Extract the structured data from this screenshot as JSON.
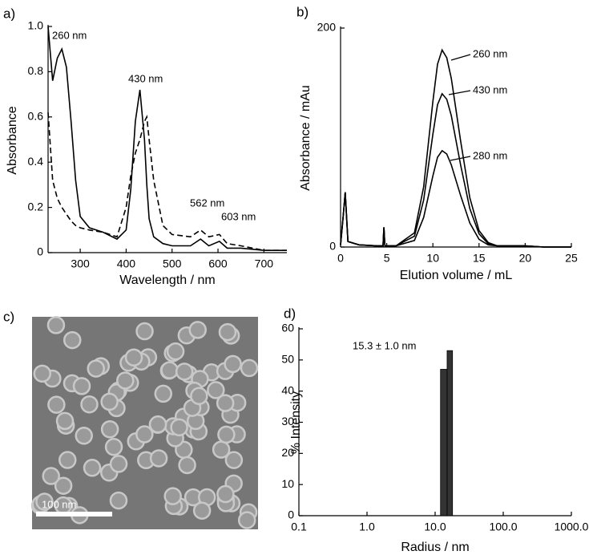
{
  "chart_data": [
    {
      "type": "line",
      "panel": "a)",
      "y_label": "Absorbance",
      "x_label": "Wavelength / nm",
      "x": [
        230,
        240,
        250,
        260,
        270,
        280,
        290,
        300,
        320,
        350,
        380,
        400,
        410,
        420,
        430,
        440,
        445,
        450,
        460,
        480,
        500,
        540,
        562,
        580,
        603,
        620,
        650,
        700,
        750
      ],
      "series": [
        {
          "color": "#000000",
          "line_style": "solid",
          "values": [
            1.0,
            0.76,
            0.86,
            0.9,
            0.82,
            0.58,
            0.32,
            0.16,
            0.11,
            0.09,
            0.06,
            0.1,
            0.28,
            0.58,
            0.72,
            0.5,
            0.3,
            0.15,
            0.07,
            0.04,
            0.03,
            0.03,
            0.06,
            0.03,
            0.05,
            0.02,
            0.02,
            0.01,
            0.01
          ]
        },
        {
          "color": "#000000",
          "line_style": "dashed",
          "values": [
            0.62,
            0.32,
            0.24,
            0.2,
            0.17,
            0.14,
            0.12,
            0.11,
            0.1,
            0.09,
            0.07,
            0.2,
            0.34,
            0.44,
            0.5,
            0.58,
            0.6,
            0.5,
            0.32,
            0.12,
            0.08,
            0.07,
            0.1,
            0.07,
            0.08,
            0.04,
            0.03,
            0.01,
            0.01
          ]
        }
      ],
      "annotations": [
        "260 nm",
        "430 nm",
        "562 nm",
        "603 nm"
      ],
      "xlim": [
        230,
        750
      ],
      "xticks": [
        300,
        400,
        500,
        600,
        700
      ],
      "ylim": [
        0,
        1
      ],
      "yticks": [
        0,
        0.2,
        0.4,
        0.6,
        0.8,
        {
          "value": 1,
          "label": "1.0"
        }
      ]
    },
    {
      "type": "line",
      "panel": "b)",
      "y_label": "Absorbance / mAu",
      "x_label": "Elution volume / mL",
      "x": [
        0,
        0.3,
        0.5,
        0.8,
        2,
        4,
        4.6,
        4.7,
        4.8,
        6,
        8,
        9,
        10,
        10.5,
        11,
        11.5,
        12,
        13,
        14,
        15,
        16,
        17,
        18,
        20,
        22,
        25
      ],
      "series": [
        {
          "color": "#000000",
          "line_style": "solid",
          "values": [
            2,
            30,
            50,
            5,
            2,
            1,
            1,
            18,
            1,
            1,
            13,
            55,
            133,
            167,
            180,
            173,
            154,
            97,
            45,
            15,
            4,
            1,
            1,
            1,
            0,
            0
          ]
        },
        {
          "color": "#000000",
          "line_style": "solid",
          "values": [
            2,
            30,
            50,
            5,
            2,
            1,
            1,
            18,
            1,
            1,
            10,
            43,
            103,
            130,
            140,
            135,
            120,
            75,
            35,
            12,
            3,
            1,
            1,
            1,
            0,
            0
          ]
        },
        {
          "color": "#000000",
          "line_style": "solid",
          "values": [
            2,
            30,
            50,
            5,
            2,
            1,
            1,
            18,
            1,
            1,
            6,
            27,
            65,
            82,
            88,
            85,
            75,
            47,
            22,
            7,
            2,
            1,
            1,
            1,
            0,
            0
          ]
        }
      ],
      "annotations": [
        "260 nm",
        "430 nm",
        "280 nm"
      ],
      "xlim": [
        0,
        25
      ],
      "xticks": [
        0,
        5,
        10,
        15,
        20,
        25
      ],
      "ylim": [
        0,
        200
      ],
      "yticks": [
        0,
        200
      ]
    },
    {
      "type": "histogram",
      "panel": "d)",
      "y_label": "% Intensity",
      "x_label": "Radius / nm",
      "bins": [
        12,
        15,
        18
      ],
      "values": [
        47,
        53
      ],
      "color": "#333333",
      "annotations": [
        "15.3 ± 1.0 nm"
      ],
      "xscale": "log",
      "xlim": [
        0.1,
        1000
      ],
      "xticks": [
        0.1,
        {
          "value": 1,
          "label": "1.0"
        },
        {
          "value": 10,
          "label": "10.0"
        },
        {
          "value": 100,
          "label": "100.0"
        },
        {
          "value": 1000,
          "label": "1000.0"
        }
      ],
      "ylim": [
        0,
        60
      ],
      "yticks": [
        0,
        10,
        20,
        30,
        40,
        50,
        60
      ]
    }
  ],
  "micrograph": {
    "panel": "c)",
    "scale_bar": "100 nm"
  }
}
